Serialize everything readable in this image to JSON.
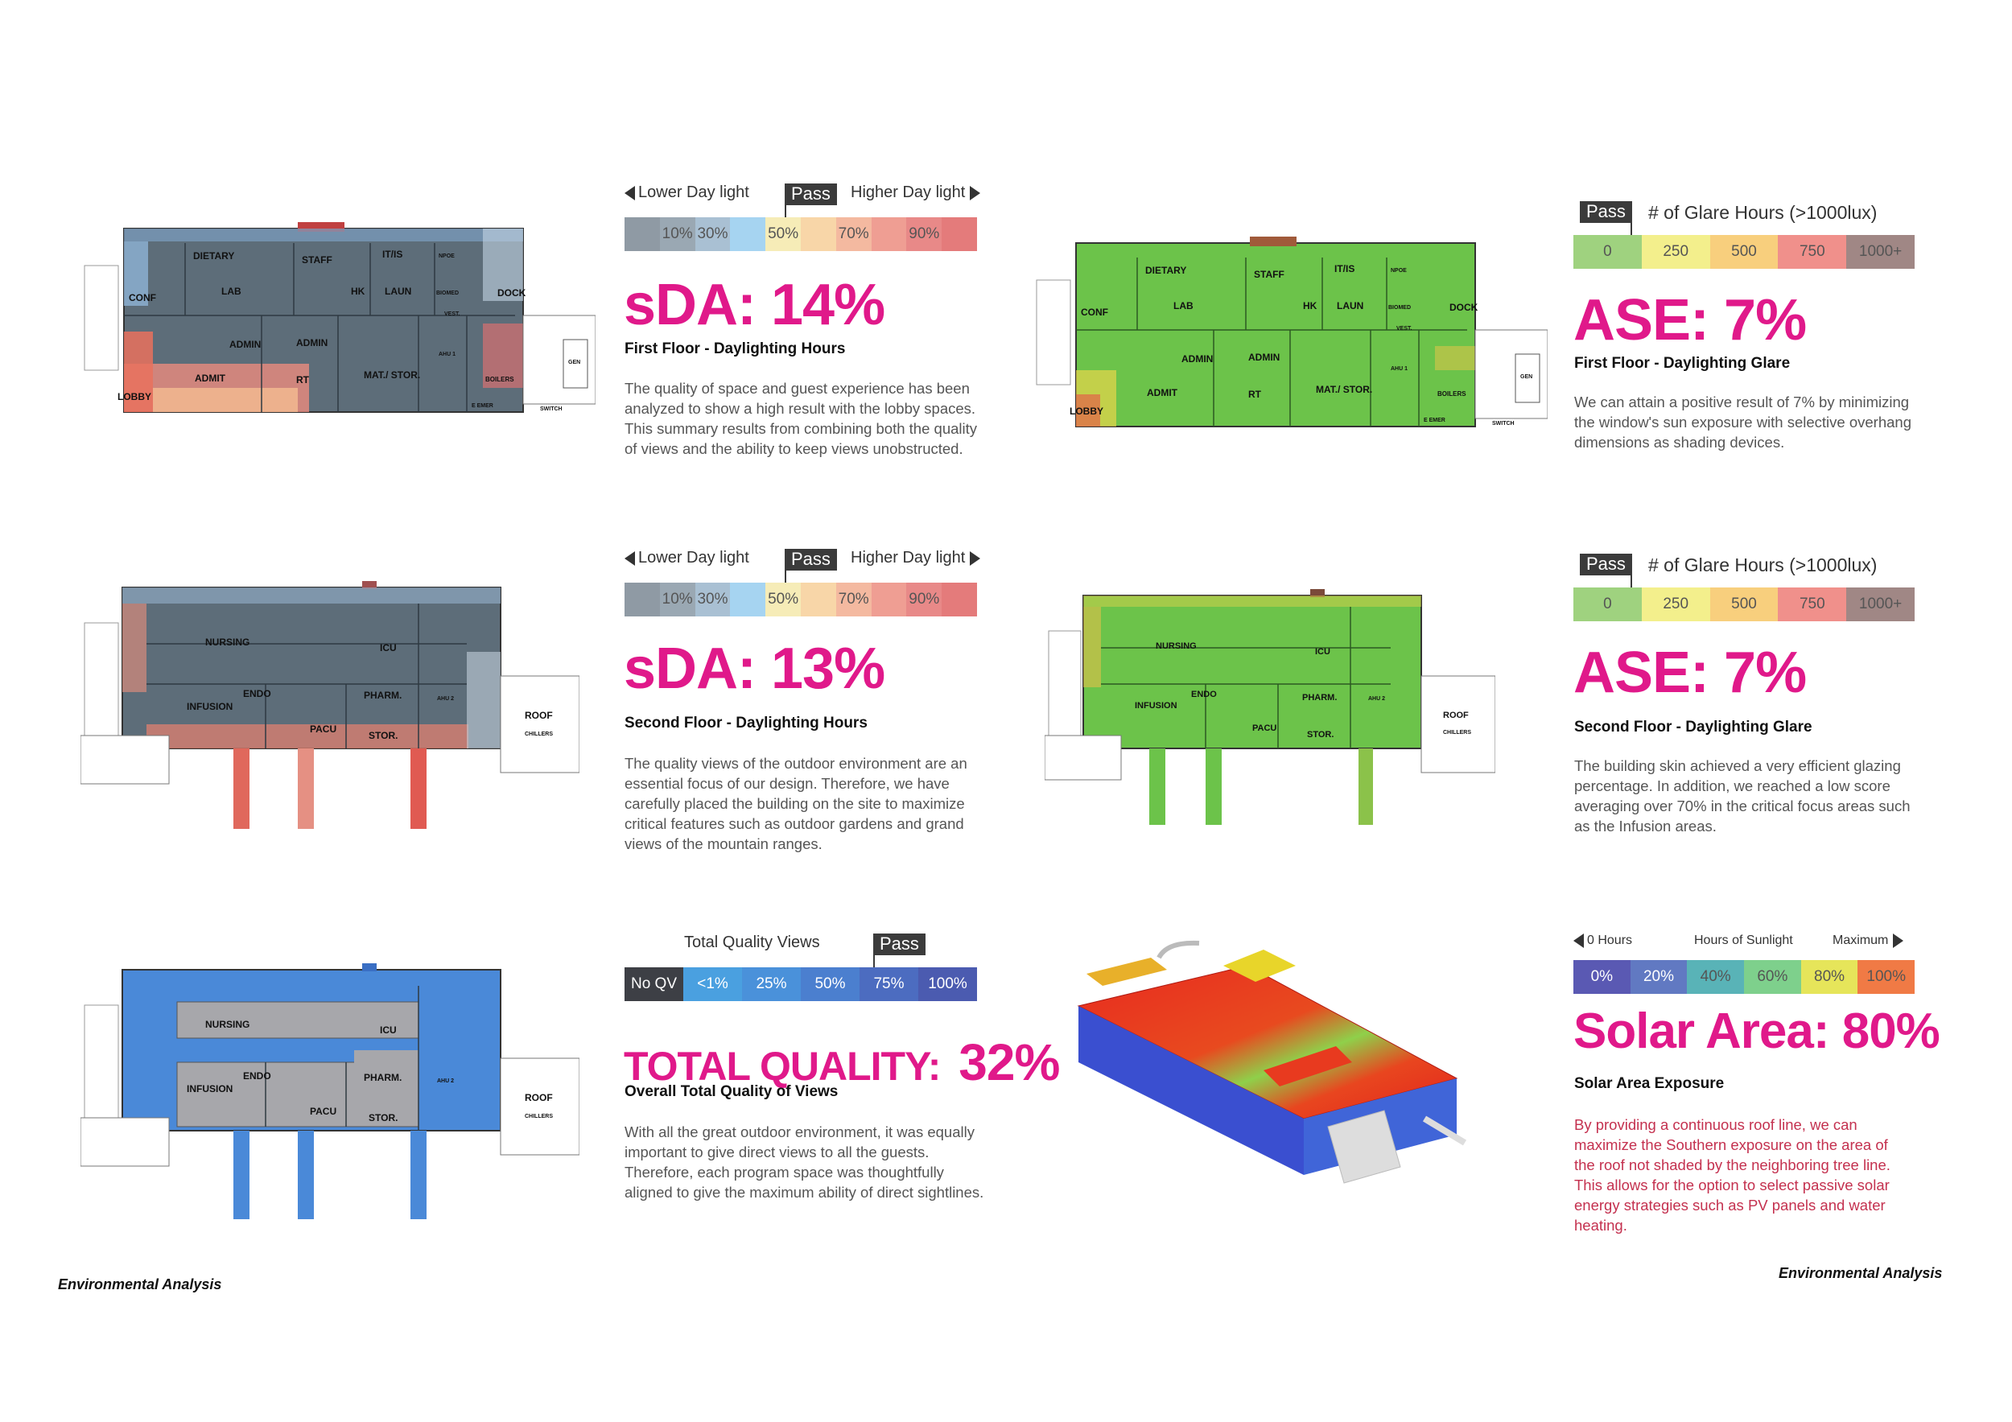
{
  "colors": {
    "magenta": "#e0198a",
    "plan_gray": "#5d6d79",
    "plan_green": "#6cc34a",
    "plan_blue": "#4a89d8",
    "plan_light_gray": "#a7a7ab"
  },
  "daylight_legend": {
    "left_label": "Lower Day light",
    "right_label": "Higher Day light",
    "pass_label": "Pass",
    "cells": [
      {
        "label": "",
        "color": "#8f9aa4"
      },
      {
        "label": "10%",
        "color": "#9aa8b3"
      },
      {
        "label": "30%",
        "color": "#a9c0d3"
      },
      {
        "label": "",
        "color": "#a6d4f1"
      },
      {
        "label": "50%",
        "color": "#f6ecb7"
      },
      {
        "label": "",
        "color": "#f8d6a8"
      },
      {
        "label": "70%",
        "color": "#f4b9a0"
      },
      {
        "label": "",
        "color": "#ef9e93"
      },
      {
        "label": "90%",
        "color": "#e88988"
      },
      {
        "label": "",
        "color": "#e47b7b"
      }
    ]
  },
  "glare_legend": {
    "pass_label": "Pass",
    "title": "# of Glare Hours (>1000lux)",
    "cells": [
      {
        "label": "0",
        "color": "#9fd27f"
      },
      {
        "label": "250",
        "color": "#f3ef8c"
      },
      {
        "label": "500",
        "color": "#f8cf7d"
      },
      {
        "label": "750",
        "color": "#f0908b"
      },
      {
        "label": "1000+",
        "color": "#a08785"
      }
    ]
  },
  "views_legend": {
    "title": "Total Quality Views",
    "pass_label": "Pass",
    "cells": [
      {
        "label": "No QV",
        "color": "#3d3f45"
      },
      {
        "label": "<1%",
        "color": "#4aa0e0"
      },
      {
        "label": "25%",
        "color": "#4a91da"
      },
      {
        "label": "50%",
        "color": "#4b7fcf"
      },
      {
        "label": "75%",
        "color": "#4c6cc0"
      },
      {
        "label": "100%",
        "color": "#4b5bb0"
      }
    ]
  },
  "solar_legend": {
    "left_label": "0 Hours",
    "center_label": "Hours of Sunlight",
    "right_label": "Maximum",
    "cells": [
      {
        "label": "0%",
        "color": "#5a59b3"
      },
      {
        "label": "20%",
        "color": "#6179c2"
      },
      {
        "label": "40%",
        "color": "#59b3b7"
      },
      {
        "label": "60%",
        "color": "#7ed08c"
      },
      {
        "label": "80%",
        "color": "#e6e55a"
      },
      {
        "label": "100%",
        "color": "#f07a45"
      }
    ]
  },
  "panels": {
    "sda1": {
      "metric": "sDA: 14%",
      "subhead": "First Floor - Daylighting Hours",
      "text": "The quality of space and guest experience has been analyzed to show a high result with the lobby spaces. This summary results from combining both the quality of views and the ability to keep views unobstructed."
    },
    "sda2": {
      "metric": "sDA: 13%",
      "subhead": "Second Floor - Daylighting Hours",
      "text": "The quality views of the outdoor environment are an essential focus of our design. Therefore, we have carefully placed the building on the site to maximize critical features such as outdoor gardens and grand views of the mountain ranges."
    },
    "tqv": {
      "metric_label": "TOTAL QUALITY:",
      "metric_value": "32%",
      "subhead": "Overall Total Quality of Views",
      "text": "With all the great outdoor environment, it was equally important to give direct views to all the guests. Therefore, each program space was thoughtfully aligned to give the maximum ability of direct sightlines."
    },
    "ase1": {
      "metric": "ASE: 7%",
      "subhead": "First Floor - Daylighting Glare",
      "text": "We can attain a positive result of 7% by minimizing the window's sun exposure with selective overhang dimensions as shading devices."
    },
    "ase2": {
      "metric": "ASE: 7%",
      "subhead": "Second Floor - Daylighting Glare",
      "text": "The building skin achieved a very efficient glazing percentage. In addition, we reached a low score averaging over 70% in the critical focus areas such as the Infusion areas."
    },
    "solar": {
      "metric": "Solar Area: 80%",
      "subhead": "Solar Area Exposure",
      "text": "By providing a continuous roof line, we can maximize the Southern exposure on the area of the roof not shaded by the neighboring tree line. This allows for the option to select passive solar energy strategies such as PV panels and water heating."
    }
  },
  "first_floor_rooms": [
    "DIETARY",
    "STAFF",
    "IT/IS",
    "NPOE",
    "LAB",
    "HK",
    "LAUN",
    "BIOMED",
    "DOCK",
    "CONF",
    "VEST.",
    "ADMIN",
    "ADMIN",
    "AHU 1",
    "GEN",
    "ADMIT",
    "RT",
    "MAT./ STOR.",
    "BOILERS",
    "LOBBY",
    "E EMER",
    "SWITCH"
  ],
  "second_floor_rooms": [
    "NURSING",
    "ICU",
    "ENDO",
    "PHARM.",
    "INFUSION",
    "PACU",
    "STOR.",
    "AHU 2",
    "ROOF",
    "CHILLERS"
  ],
  "footer": {
    "left": "Environmental Analysis",
    "right": "Environmental Analysis"
  }
}
